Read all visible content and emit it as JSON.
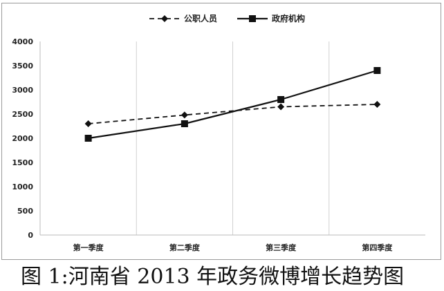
{
  "caption": "图 1:河南省 2013 年政务微博增长趋势图",
  "chart_data": {
    "type": "line",
    "title": "",
    "xlabel": "",
    "ylabel": "",
    "categories": [
      "第一季度",
      "第二季度",
      "第三季度",
      "第四季度"
    ],
    "ylim": [
      0,
      4000
    ],
    "yticks": [
      0,
      500,
      1000,
      1500,
      2000,
      2500,
      3000,
      3500,
      4000
    ],
    "grid": "vertical",
    "legend": "top-center",
    "series": [
      {
        "name": "公职人员",
        "values": [
          2300,
          2480,
          2650,
          2700
        ],
        "style": "dashed",
        "marker": "diamond",
        "color": "#111111"
      },
      {
        "name": "政府机构",
        "values": [
          2000,
          2300,
          2800,
          3400
        ],
        "style": "solid",
        "marker": "square",
        "color": "#111111"
      }
    ]
  }
}
